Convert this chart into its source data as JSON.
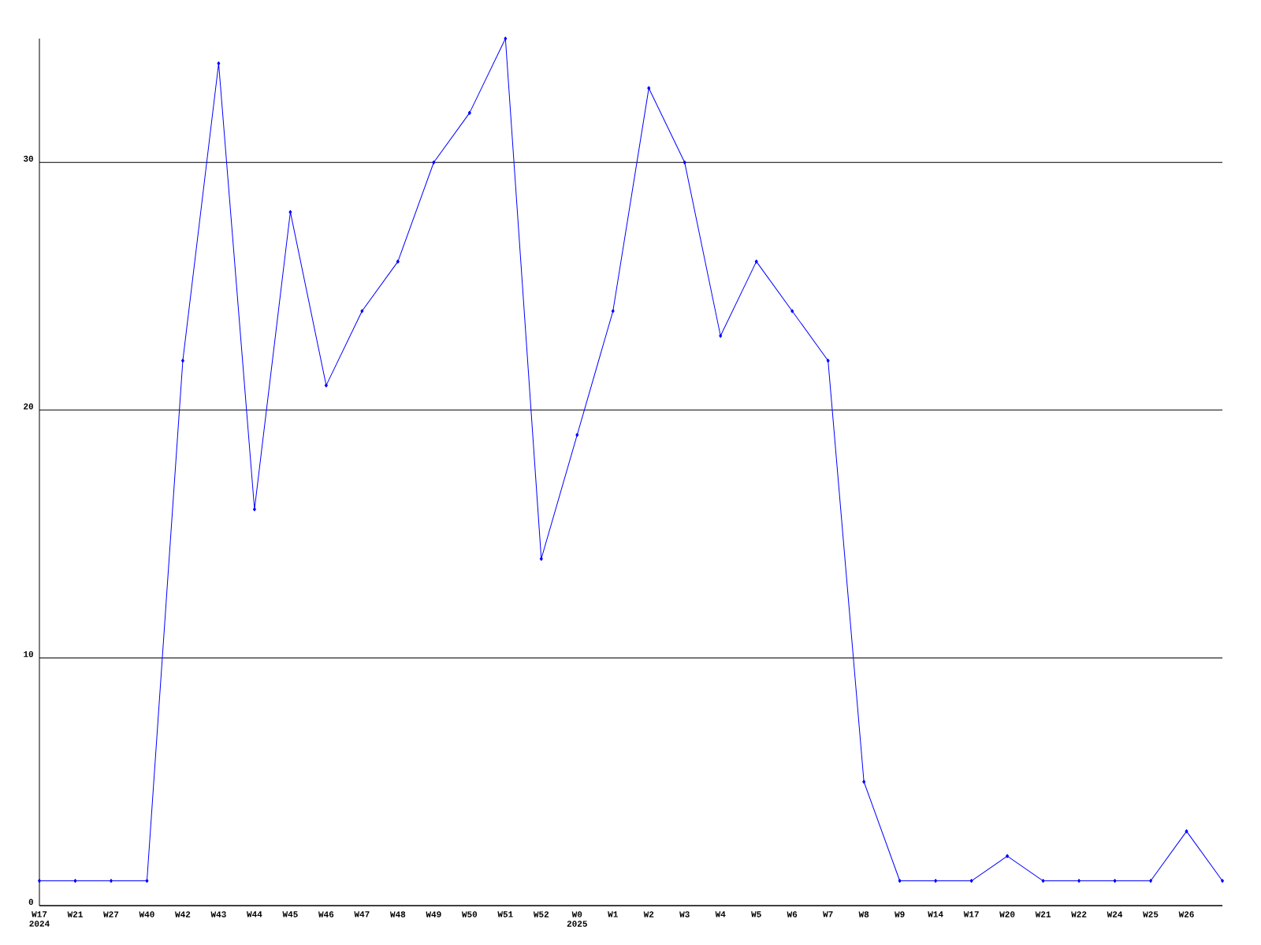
{
  "chart_data": {
    "type": "line",
    "categories": [
      "W17 2024",
      "W21",
      "W27",
      "W40",
      "W42",
      "W43",
      "W44",
      "W45",
      "W46",
      "W47",
      "W48",
      "W49",
      "W50",
      "W51",
      "W52",
      "W0 2025",
      "W1",
      "W2",
      "W3",
      "W4",
      "W5",
      "W6",
      "W7",
      "W8",
      "W9",
      "W14",
      "W17",
      "W20",
      "W21",
      "W22",
      "W24",
      "W25",
      "W26",
      null
    ],
    "values": [
      1,
      1,
      1,
      1,
      22,
      34,
      16,
      28,
      21,
      24,
      26,
      30,
      32,
      35,
      14,
      19,
      24,
      33,
      30,
      23,
      26,
      24,
      22,
      5,
      1,
      1,
      1,
      2,
      1,
      1,
      1,
      1,
      3,
      1
    ],
    "color": "#0000ff",
    "ylim": [
      0,
      35
    ],
    "yticks": [
      0,
      10,
      20,
      30
    ],
    "grid": "y",
    "marker": "diamond"
  }
}
